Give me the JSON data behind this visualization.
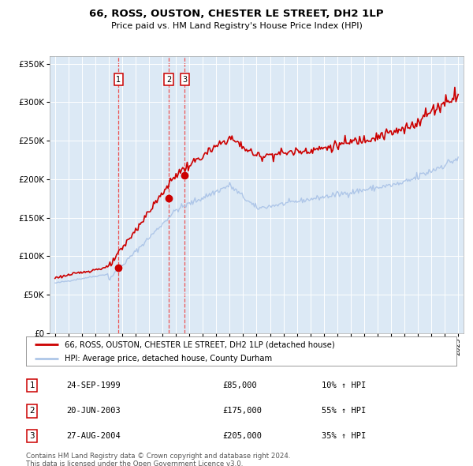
{
  "title": "66, ROSS, OUSTON, CHESTER LE STREET, DH2 1LP",
  "subtitle": "Price paid vs. HM Land Registry's House Price Index (HPI)",
  "legend_line1": "66, ROSS, OUSTON, CHESTER LE STREET, DH2 1LP (detached house)",
  "legend_line2": "HPI: Average price, detached house, County Durham",
  "footer1": "Contains HM Land Registry data © Crown copyright and database right 2024.",
  "footer2": "This data is licensed under the Open Government Licence v3.0.",
  "transactions": [
    {
      "num": 1,
      "date": "24-SEP-1999",
      "price": 85000,
      "pct": "10%",
      "dir": "↑",
      "year": 1999.73
    },
    {
      "num": 2,
      "date": "20-JUN-2003",
      "price": 175000,
      "pct": "55%",
      "dir": "↑",
      "year": 2003.47
    },
    {
      "num": 3,
      "date": "27-AUG-2004",
      "price": 205000,
      "pct": "35%",
      "dir": "↑",
      "year": 2004.65
    }
  ],
  "hpi_color": "#aec6e8",
  "property_color": "#cc0000",
  "dot_color": "#cc0000",
  "vline_color": "#ee4444",
  "plot_bg": "#dce9f5",
  "grid_color": "#ffffff",
  "ylim": [
    0,
    360000
  ],
  "yticks": [
    0,
    50000,
    100000,
    150000,
    200000,
    250000,
    300000,
    350000
  ],
  "xlim_start": 1994.6,
  "xlim_end": 2025.4,
  "xticks": [
    1995,
    1996,
    1997,
    1998,
    1999,
    2000,
    2001,
    2002,
    2003,
    2004,
    2005,
    2006,
    2007,
    2008,
    2009,
    2010,
    2011,
    2012,
    2013,
    2014,
    2015,
    2016,
    2017,
    2018,
    2019,
    2020,
    2021,
    2022,
    2023,
    2024,
    2025
  ]
}
